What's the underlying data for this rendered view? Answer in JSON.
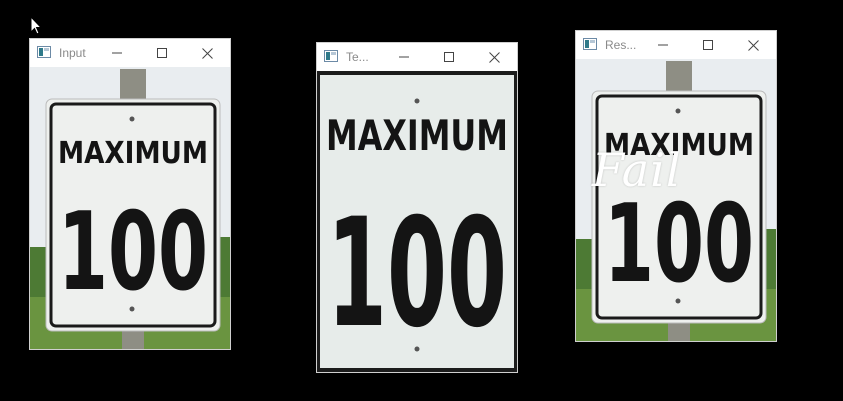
{
  "windows": [
    {
      "id": "input",
      "title": "Input",
      "controls": {
        "minimize": "minimize-icon",
        "maximize": "maximize-icon",
        "close": "close-icon"
      },
      "sign": {
        "line1": "MAXIMUM",
        "line2": "100"
      }
    },
    {
      "id": "template",
      "title": "Te...",
      "controls": {
        "minimize": "minimize-icon",
        "maximize": "maximize-icon",
        "close": "close-icon"
      },
      "sign": {
        "line1": "MAXIMUM",
        "line2": "100"
      }
    },
    {
      "id": "result",
      "title": "Res...",
      "controls": {
        "minimize": "minimize-icon",
        "maximize": "maximize-icon",
        "close": "close-icon"
      },
      "sign": {
        "line1": "MAXIMUM",
        "line2": "100"
      },
      "overlay_text": "Fail"
    }
  ],
  "colors": {
    "desktop": "#000000",
    "sign_face": "#eef0ee",
    "sign_border": "#1a1a1a",
    "sky": "#e9edf0",
    "grass": "#5f8f3a",
    "post": "#8e8e84"
  },
  "cursor_icon": "arrow-cursor-icon"
}
